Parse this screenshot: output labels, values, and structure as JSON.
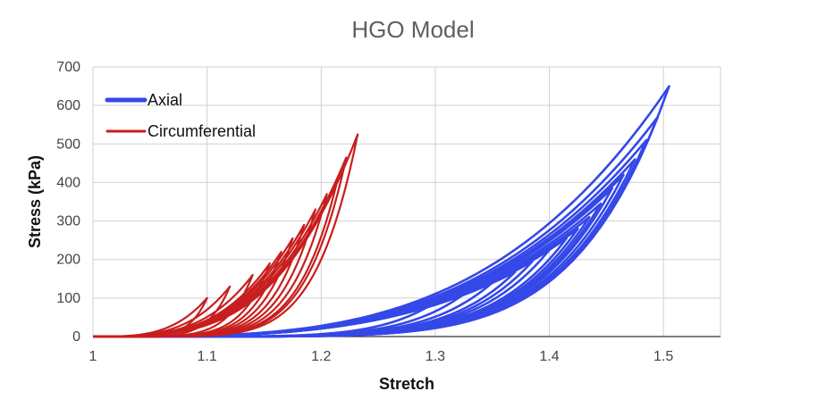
{
  "chart_data": {
    "type": "line",
    "title": "HGO Model",
    "xlabel": "Stretch",
    "ylabel": "Stress (kPa)",
    "xlim": [
      1,
      1.55
    ],
    "ylim": [
      0,
      700
    ],
    "x_ticks": [
      "1",
      "1.1",
      "1.2",
      "1.3",
      "1.4",
      "1.5"
    ],
    "y_ticks": [
      "0",
      "100",
      "200",
      "300",
      "400",
      "500",
      "600",
      "700"
    ],
    "grid": true,
    "legend_position": "top-left",
    "series": [
      {
        "name": "Axial",
        "color": "#3448e8",
        "description_of_shape": "repeated loading/unloading hysteresis loops",
        "loops": [
          {
            "peak_stretch": 1.295,
            "peak_stress": 80
          },
          {
            "peak_stretch": 1.325,
            "peak_stress": 110
          },
          {
            "peak_stretch": 1.35,
            "peak_stress": 140
          },
          {
            "peak_stretch": 1.37,
            "peak_stress": 168
          },
          {
            "peak_stretch": 1.385,
            "peak_stress": 195
          },
          {
            "peak_stretch": 1.4,
            "peak_stress": 225
          },
          {
            "peak_stretch": 1.415,
            "peak_stress": 255
          },
          {
            "peak_stretch": 1.425,
            "peak_stress": 280
          },
          {
            "peak_stretch": 1.435,
            "peak_stress": 310
          },
          {
            "peak_stretch": 1.445,
            "peak_stress": 345
          },
          {
            "peak_stretch": 1.455,
            "peak_stress": 385
          },
          {
            "peak_stretch": 1.465,
            "peak_stress": 420
          },
          {
            "peak_stretch": 1.475,
            "peak_stress": 460
          },
          {
            "peak_stretch": 1.485,
            "peak_stress": 510
          },
          {
            "peak_stretch": 1.495,
            "peak_stress": 570
          },
          {
            "peak_stretch": 1.505,
            "peak_stress": 650
          }
        ]
      },
      {
        "name": "Circumferential",
        "color": "#c81e1e",
        "description_of_shape": "repeated loading/unloading hysteresis loops",
        "loops": [
          {
            "peak_stretch": 1.1,
            "peak_stress": 100
          },
          {
            "peak_stretch": 1.12,
            "peak_stress": 130
          },
          {
            "peak_stretch": 1.14,
            "peak_stress": 160
          },
          {
            "peak_stretch": 1.155,
            "peak_stress": 190
          },
          {
            "peak_stretch": 1.165,
            "peak_stress": 220
          },
          {
            "peak_stretch": 1.175,
            "peak_stress": 255
          },
          {
            "peak_stretch": 1.185,
            "peak_stress": 290
          },
          {
            "peak_stretch": 1.195,
            "peak_stress": 330
          },
          {
            "peak_stretch": 1.205,
            "peak_stress": 370
          },
          {
            "peak_stretch": 1.215,
            "peak_stress": 415
          },
          {
            "peak_stretch": 1.222,
            "peak_stress": 465
          },
          {
            "peak_stretch": 1.232,
            "peak_stress": 525
          }
        ]
      }
    ]
  }
}
